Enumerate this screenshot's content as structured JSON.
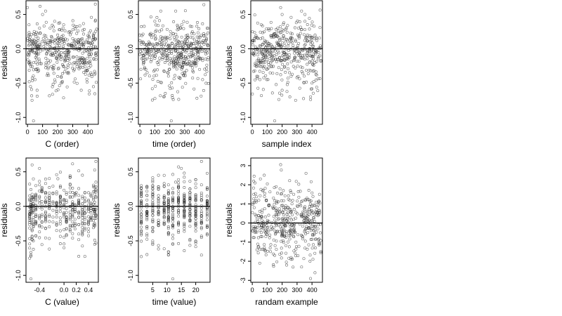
{
  "figure": {
    "panel_count": 6,
    "layout": "2 rows x 3 columns, right third of canvas empty"
  },
  "chart_data": [
    {
      "type": "scatter",
      "xlabel": "C (order)",
      "ylabel": "residuals",
      "xlim": [
        -10,
        470
      ],
      "ylim": [
        -1.1,
        0.7
      ],
      "xticks": [
        0,
        100,
        200,
        300,
        400
      ],
      "yticks": [
        -1.0,
        -0.5,
        0.0,
        0.5
      ],
      "ytick_labels": [
        "-1.0",
        "-0.5",
        "0.0",
        "0.5"
      ],
      "reference_line": 0,
      "marker": "open-circle",
      "point_count": 460,
      "series": [
        {
          "x": [
            0,
            10,
            20,
            30,
            40,
            50,
            60,
            80,
            100,
            120,
            150,
            180,
            200,
            240,
            280,
            300,
            340,
            380,
            420,
            450,
            10,
            60,
            120,
            170,
            220,
            270,
            330,
            390,
            440
          ],
          "y": [
            0.6,
            0.35,
            -0.55,
            -0.75,
            -1.05,
            -0.45,
            0.05,
            0.3,
            0.5,
            0.55,
            0.3,
            0.4,
            0.2,
            0.35,
            0.25,
            0.15,
            0.1,
            -0.2,
            -0.35,
            0.65,
            -0.2,
            -0.1,
            0.1,
            -0.3,
            0.15,
            -0.05,
            0.0,
            0.1,
            -0.15
          ]
        }
      ]
    },
    {
      "type": "scatter",
      "xlabel": "time (order)",
      "ylabel": "residuals",
      "xlim": [
        -10,
        470
      ],
      "ylim": [
        -1.1,
        0.7
      ],
      "xticks": [
        0,
        100,
        200,
        300,
        400
      ],
      "yticks": [
        -1.0,
        -0.5,
        0.0,
        0.5
      ],
      "ytick_labels": [
        "-1.0",
        "-0.5",
        "0.0",
        "0.5"
      ],
      "reference_line": 0,
      "marker": "open-circle",
      "point_count": 460,
      "series": [
        {
          "x": [
            0,
            20,
            40,
            70,
            100,
            140,
            160,
            170,
            190,
            210,
            240,
            280,
            320,
            360,
            400,
            420,
            450,
            30,
            90,
            150,
            230,
            300,
            380,
            440
          ],
          "y": [
            0.2,
            0.1,
            -0.3,
            0.2,
            0.4,
            0.55,
            -0.7,
            -0.65,
            -0.35,
            -1.05,
            0.55,
            0.35,
            0.2,
            0.0,
            -0.3,
            -0.45,
            0.3,
            -0.1,
            0.05,
            0.15,
            -0.2,
            0.1,
            0.0,
            -0.15
          ]
        }
      ]
    },
    {
      "type": "scatter",
      "xlabel": "sample index",
      "ylabel": "residuals",
      "xlim": [
        -10,
        470
      ],
      "ylim": [
        -1.1,
        0.7
      ],
      "xticks": [
        0,
        100,
        200,
        300,
        400
      ],
      "yticks": [
        -1.0,
        -0.5,
        0.0,
        0.5
      ],
      "ytick_labels": [
        "-1.0",
        "-0.5",
        "0.0",
        "0.5"
      ],
      "reference_line": 0,
      "marker": "open-circle",
      "point_count": 460,
      "series": [
        {
          "x": [
            0,
            30,
            60,
            100,
            120,
            150,
            170,
            190,
            200,
            220,
            260,
            290,
            310,
            330,
            370,
            400,
            430,
            450,
            50,
            140,
            240,
            350,
            420
          ],
          "y": [
            0.1,
            -0.4,
            0.35,
            0.1,
            -0.35,
            -1.05,
            0.3,
            0.6,
            0.5,
            0.1,
            -0.4,
            -0.75,
            0.3,
            0.55,
            0.2,
            -0.5,
            0.15,
            0.0,
            -0.05,
            0.2,
            -0.15,
            0.05,
            -0.2
          ]
        }
      ]
    },
    {
      "type": "scatter",
      "xlabel": "C (value)",
      "ylabel": "residuals",
      "xlim": [
        -0.62,
        0.56
      ],
      "ylim": [
        -1.1,
        0.7
      ],
      "xticks": [
        -0.4,
        0.0,
        0.2,
        0.4
      ],
      "xtick_labels": [
        "-0.4",
        "0.0",
        "0.2",
        "0.4"
      ],
      "yticks": [
        -1.0,
        -0.5,
        0.0,
        0.5
      ],
      "ytick_labels": [
        "-1.0",
        "-0.5",
        "0.0",
        "0.5"
      ],
      "reference_line": 0,
      "marker": "open-circle",
      "point_count": 460,
      "x_levels": [
        -0.56,
        -0.54,
        -0.52,
        -0.5,
        -0.46,
        -0.4,
        -0.36,
        -0.3,
        -0.24,
        -0.18,
        -0.12,
        -0.06,
        0.0,
        0.04,
        0.1,
        0.14,
        0.18,
        0.24,
        0.3,
        0.34,
        0.4,
        0.44,
        0.48,
        0.5,
        0.52
      ],
      "series": [
        {
          "x": [
            -0.56,
            -0.54,
            -0.52,
            -0.5,
            -0.4,
            -0.3,
            -0.1,
            0.0,
            0.2,
            0.3,
            0.44,
            0.5,
            0.52
          ],
          "y": [
            -0.75,
            -1.05,
            0.6,
            -0.5,
            0.55,
            0.2,
            0.4,
            -0.6,
            0.2,
            -0.35,
            0.15,
            -0.55,
            0.65
          ]
        }
      ]
    },
    {
      "type": "scatter",
      "xlabel": "time (value)",
      "ylabel": "residuals",
      "xlim": [
        0,
        25
      ],
      "ylim": [
        -1.1,
        0.7
      ],
      "xticks": [
        5,
        10,
        15,
        20
      ],
      "yticks": [
        -1.0,
        -0.5,
        0.0,
        0.5
      ],
      "ytick_labels": [
        "-1.0",
        "-0.5",
        "0.0",
        "0.5"
      ],
      "reference_line": 0,
      "marker": "open-circle",
      "point_count": 460,
      "x_levels": [
        1,
        3,
        5,
        7,
        9,
        10.5,
        12,
        14,
        16,
        18,
        20,
        22,
        24
      ],
      "series": [
        {
          "x": [
            1,
            3,
            5,
            7,
            10.5,
            12,
            13,
            15,
            18,
            20,
            22,
            24
          ],
          "y": [
            0.15,
            -0.4,
            0.25,
            0.45,
            -0.7,
            -1.05,
            0.35,
            0.55,
            0.2,
            0.0,
            0.65,
            -0.3
          ]
        }
      ]
    },
    {
      "type": "scatter",
      "xlabel": "randam example",
      "ylabel": "residuals",
      "xlim": [
        -10,
        470
      ],
      "ylim": [
        -3.1,
        3.4
      ],
      "xticks": [
        0,
        100,
        200,
        300,
        400
      ],
      "yticks": [
        -3,
        -2,
        -1,
        0,
        1,
        2,
        3
      ],
      "ytick_labels": [
        "-3",
        "-2",
        "-1",
        "0",
        "1",
        "2",
        "3"
      ],
      "reference_line": 0,
      "marker": "open-circle",
      "point_count": 460,
      "series": [
        {
          "x": [
            10,
            50,
            80,
            120,
            160,
            190,
            230,
            260,
            300,
            330,
            360,
            390,
            420,
            450,
            40,
            100,
            200,
            280,
            380
          ],
          "y": [
            1.5,
            -2.1,
            2.5,
            -1.3,
            1.9,
            3.05,
            -2.2,
            -1.9,
            0.9,
            -2.3,
            2.6,
            -2.9,
            -2.6,
            1.5,
            0.4,
            -0.6,
            0.2,
            -0.4,
            0.7
          ]
        }
      ]
    }
  ],
  "colors": {
    "background": "#ffffff",
    "marker_stroke": "#2b2b2b",
    "axis": "#000000",
    "reference_line": "#000000"
  }
}
